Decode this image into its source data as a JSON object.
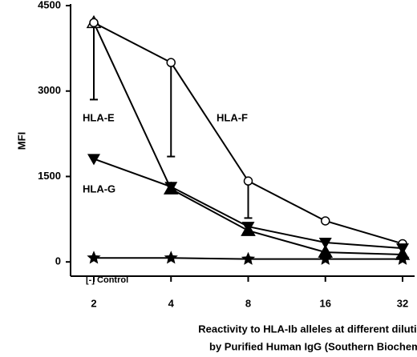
{
  "chart_data": {
    "type": "line",
    "x_label": [
      "Reactivity to HLA-Ib alleles at different dilutions",
      "by Purified Human IgG (Southern Biochem)"
    ],
    "y_label": "MFI",
    "categories": [
      "2",
      "4",
      "8",
      "16",
      "32"
    ],
    "ylim": [
      -250,
      4500
    ],
    "yticks": [
      0,
      1500,
      3000,
      4500
    ],
    "series": [
      {
        "name": "HLA-E",
        "color": "#000000",
        "values": [
          4200,
          1280,
          550,
          170,
          130
        ],
        "errors": [
          1350,
          null,
          null,
          null,
          null
        ]
      },
      {
        "name": "HLA-F",
        "color": "#000000",
        "values": [
          4200,
          3500,
          1420,
          720,
          320
        ],
        "errors": [
          null,
          1650,
          650,
          null,
          null
        ]
      },
      {
        "name": "HLA-G",
        "color": "#000000",
        "values": [
          1810,
          1320,
          620,
          340,
          240
        ],
        "errors": [
          null,
          null,
          null,
          null,
          null
        ]
      },
      {
        "name": "[-] Control",
        "color": "#000000",
        "values": [
          70,
          70,
          50,
          50,
          50
        ],
        "errors": [
          null,
          null,
          null,
          null,
          null
        ]
      }
    ]
  }
}
